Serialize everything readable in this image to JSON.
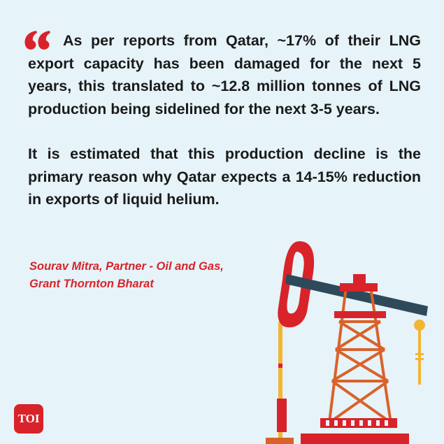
{
  "quote": {
    "paragraphs": [
      "As per reports from Qatar, ~17% of their LNG export capacity has been damaged for the next 5 years, this translated to ~12.8 million tonnes of LNG production being sidelined for the next 3-5 years.",
      "It is estimated that this production decline is the primary reason why Qatar expects a 14-15% reduction in exports of liquid helium."
    ],
    "attribution": "Sourav Mitra, Partner - Oil and Gas, Grant Thornton Bharat"
  },
  "logo": "TOI"
}
